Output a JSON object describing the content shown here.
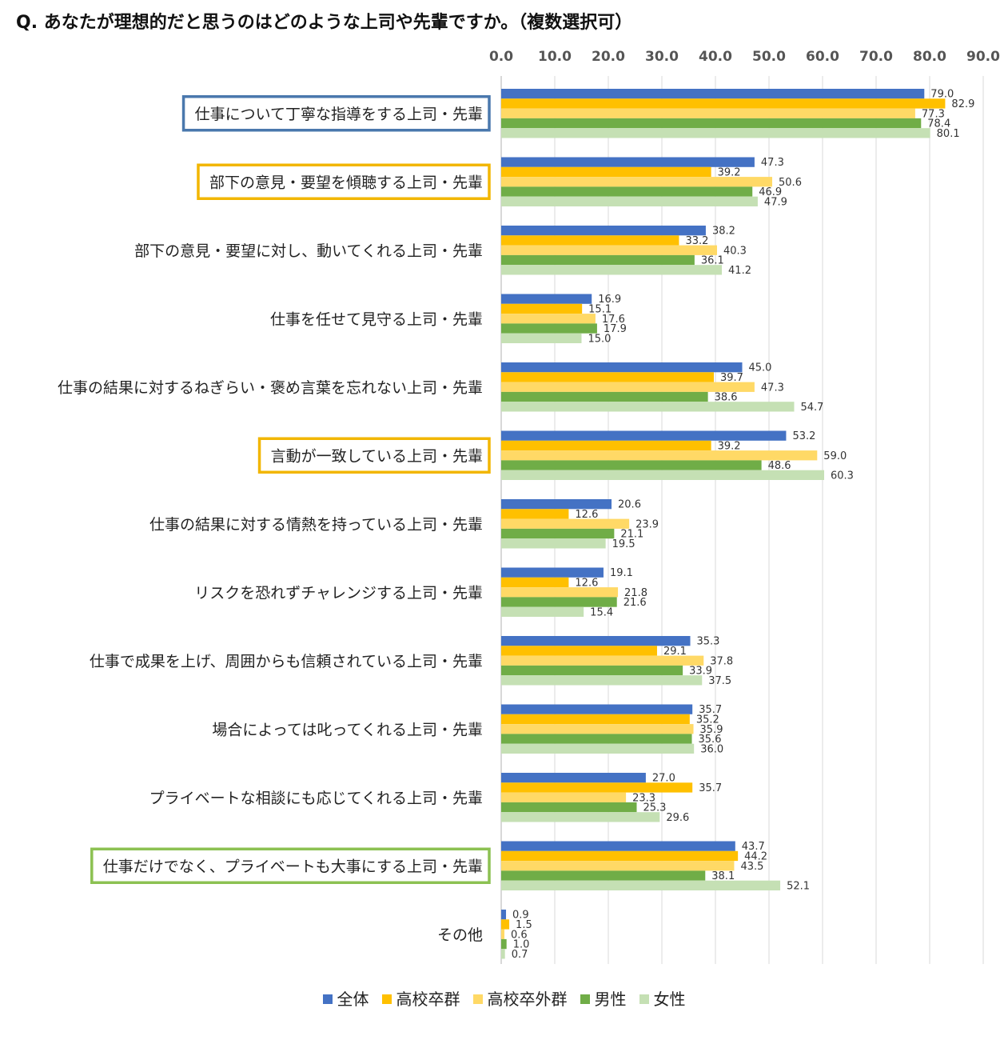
{
  "title": "Q.  あなたが理想的だと思うのはどのような上司や先輩ですか。（複数選択可）",
  "chart_data": {
    "type": "bar",
    "orientation": "horizontal",
    "xlim": [
      0,
      90
    ],
    "xticks": [
      "0.0",
      "10.0",
      "20.0",
      "30.0",
      "40.0",
      "50.0",
      "60.0",
      "70.0",
      "80.0",
      "90.0"
    ],
    "grid": true,
    "legend_position": "bottom",
    "categories": [
      "仕事について丁寧な指導をする上司・先輩",
      "部下の意見・要望を傾聴する上司・先輩",
      "部下の意見・要望に対し、動いてくれる上司・先輩",
      "仕事を任せて見守る上司・先輩",
      "仕事の結果に対するねぎらい・褒め言葉を忘れない上司・先輩",
      "言動が一致している上司・先輩",
      "仕事の結果に対する情熱を持っている上司・先輩",
      "リスクを恐れずチャレンジする上司・先輩",
      "仕事で成果を上げ、周囲からも信頼されている上司・先輩",
      "場合によっては叱ってくれる上司・先輩",
      "プライベートな相談にも応じてくれる上司・先輩",
      "仕事だけでなく、プライベートも大事にする上司・先輩",
      "その他"
    ],
    "highlighted": [
      {
        "index": 0,
        "color": "#4a78ad"
      },
      {
        "index": 1,
        "color": "#f2b600"
      },
      {
        "index": 5,
        "color": "#f2b600"
      },
      {
        "index": 11,
        "color": "#8cc152"
      }
    ],
    "series": [
      {
        "name": "全体",
        "color": "#4472c4",
        "values": [
          "79.0",
          "47.3",
          "38.2",
          "16.9",
          "45.0",
          "53.2",
          "20.6",
          "19.1",
          "35.3",
          "35.7",
          "27.0",
          "43.7",
          "0.9"
        ]
      },
      {
        "name": "高校卒群",
        "color": "#ffc000",
        "values": [
          "82.9",
          "39.2",
          "33.2",
          "15.1",
          "39.7",
          "39.2",
          "12.6",
          "12.6",
          "29.1",
          "35.2",
          "35.7",
          "44.2",
          "1.5"
        ]
      },
      {
        "name": "高校卒外群",
        "color": "#ffd966",
        "values": [
          "77.3",
          "50.6",
          "40.3",
          "17.6",
          "47.3",
          "59.0",
          "23.9",
          "21.8",
          "37.8",
          "35.9",
          "23.3",
          "43.5",
          "0.6"
        ]
      },
      {
        "name": "男性",
        "color": "#70ad47",
        "values": [
          "78.4",
          "46.9",
          "36.1",
          "17.9",
          "38.6",
          "48.6",
          "21.1",
          "21.6",
          "33.9",
          "35.6",
          "25.3",
          "38.1",
          "1.0"
        ]
      },
      {
        "name": "女性",
        "color": "#c5e0b4",
        "values": [
          "80.1",
          "47.9",
          "41.2",
          "15.0",
          "54.7",
          "60.3",
          "19.5",
          "15.4",
          "37.5",
          "36.0",
          "29.6",
          "52.1",
          "0.7"
        ]
      }
    ]
  }
}
